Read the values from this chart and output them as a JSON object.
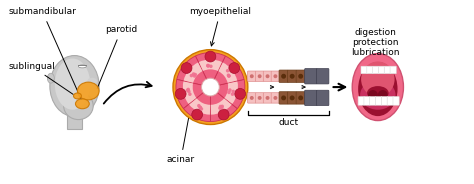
{
  "text_submandibular": "submandibular",
  "text_parotid": "parotid",
  "text_sublingual": "sublingual",
  "text_myoepithelial": "myoepithelial",
  "text_acinar": "acinar",
  "text_duct": "duct",
  "text_lubrication": "lubrication",
  "text_protection": "protection",
  "text_digestion": "digestion",
  "orange_color": "#F5A020",
  "pink_outer": "#F08090",
  "pink_cell": "#F590A0",
  "pink_light": "#F9C8C8",
  "pink_med": "#EE6080",
  "red_nucleus": "#CC2040",
  "pink_granule": "#F07090",
  "brown_duct": "#8B5535",
  "gray_duct": "#606070",
  "gray_dark": "#404050",
  "head_gray": "#C8C8C8",
  "head_edge": "#AAAAAA",
  "skin_light": "#F0D0B8",
  "mouth_outer": "#F06888",
  "mouth_inner_dark": "#9B1030",
  "mouth_tongue": "#E05570",
  "mouth_bg_pink": "#D94870",
  "teeth_white": "#FFFFFF",
  "font_size": 6.5,
  "arrow_color": "#111111"
}
